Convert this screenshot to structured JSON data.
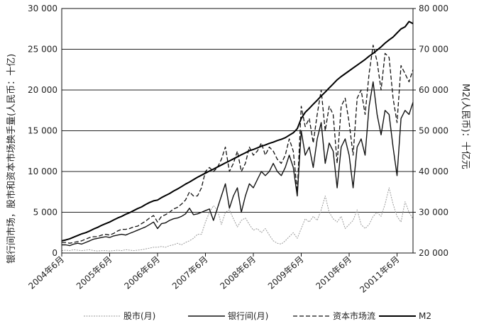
{
  "chart_data": {
    "type": "line",
    "y_left_label": "银行间市场，股市和资本市场换手量(人民币：十亿)",
    "y_right_label": "M2(人民币)：十亿元",
    "y_left_lim": [
      0,
      30000
    ],
    "y_right_lim": [
      20000,
      80000
    ],
    "y_left_ticks": [
      "0",
      "5 000",
      "10 000",
      "15 000",
      "20 000",
      "25 000",
      "30 000"
    ],
    "y_right_ticks": [
      "20 000",
      "30 000",
      "40 000",
      "50 000",
      "60 000",
      "70 000",
      "80 000"
    ],
    "x_ticks": [
      "2004年6月",
      "2005年6月",
      "2006年6月",
      "2007年6月",
      "2008年6月",
      "2009年6月",
      "2010年6月",
      "20011年6月"
    ],
    "x_tick_months": [
      0,
      12,
      24,
      36,
      48,
      60,
      72,
      84
    ],
    "x_months_total": 89,
    "grid": "horizontal",
    "legend_position": "bottom",
    "series": [
      {
        "name": "股市(月)",
        "axis": "left",
        "style": "dotted",
        "values": [
          300,
          350,
          300,
          400,
          350,
          300,
          350,
          400,
          300,
          250,
          300,
          300,
          250,
          300,
          350,
          300,
          400,
          350,
          300,
          350,
          400,
          500,
          600,
          700,
          700,
          800,
          700,
          900,
          1000,
          1200,
          1000,
          1300,
          1500,
          1800,
          2300,
          2300,
          3800,
          5000,
          5800,
          5300,
          3500,
          5000,
          5300,
          4200,
          3200,
          4000,
          4300,
          3500,
          2800,
          3000,
          2500,
          3000,
          2200,
          1500,
          1200,
          1100,
          1500,
          2000,
          2500,
          1800,
          3000,
          4200,
          3800,
          4500,
          4000,
          5300,
          7000,
          5000,
          4200,
          3800,
          4500,
          3000,
          3500,
          4000,
          5300,
          3500,
          3000,
          3500,
          4500,
          5000,
          4500,
          6000,
          8000,
          6000,
          4500,
          3800,
          6300,
          5000,
          4200
        ]
      },
      {
        "name": "银行间(月)",
        "axis": "left",
        "style": "solid",
        "values": [
          1000,
          1000,
          900,
          1100,
          1200,
          1100,
          1300,
          1500,
          1700,
          1800,
          1900,
          2000,
          1900,
          2100,
          2200,
          2300,
          2200,
          2400,
          2600,
          2800,
          3000,
          3200,
          3500,
          3800,
          3000,
          3600,
          3700,
          4000,
          4200,
          4300,
          4500,
          4800,
          5500,
          4700,
          4800,
          5000,
          5200,
          5400,
          4000,
          5500,
          7000,
          8500,
          5500,
          7000,
          8000,
          5000,
          7000,
          8500,
          8000,
          9000,
          10000,
          9500,
          10000,
          11000,
          10000,
          9500,
          10500,
          12000,
          10500,
          7000,
          15000,
          12000,
          13000,
          10500,
          14000,
          16000,
          11000,
          13500,
          12500,
          8000,
          13000,
          14000,
          12000,
          8000,
          13000,
          14000,
          12000,
          18000,
          21000,
          17000,
          14500,
          17500,
          17000,
          13000,
          9500,
          16500,
          17500,
          17000,
          18500
        ]
      },
      {
        "name": "资本市场流",
        "axis": "left",
        "style": "dashed",
        "values": [
          1300,
          1300,
          1200,
          1300,
          1400,
          1500,
          1700,
          1900,
          2000,
          2000,
          2200,
          2300,
          2200,
          2400,
          2700,
          2900,
          2900,
          3000,
          3200,
          3300,
          3600,
          3900,
          4300,
          4600,
          3800,
          4500,
          4700,
          5000,
          5400,
          5600,
          6000,
          6500,
          7500,
          7000,
          7000,
          8000,
          10000,
          10500,
          10000,
          10500,
          11500,
          13000,
          10000,
          11000,
          12500,
          10000,
          11000,
          13000,
          12000,
          12500,
          13500,
          12000,
          13000,
          12500,
          11500,
          11000,
          12000,
          14000,
          12500,
          7500,
          18000,
          15500,
          16500,
          13500,
          17000,
          20000,
          15000,
          18000,
          17000,
          11000,
          18000,
          19000,
          16000,
          12000,
          19000,
          20000,
          17000,
          22000,
          25500,
          23500,
          20000,
          24500,
          24000,
          19000,
          16000,
          23000,
          22000,
          21000,
          22500
        ]
      },
      {
        "name": "M2",
        "axis": "right",
        "style": "solid-bold",
        "values": [
          23000,
          23200,
          23500,
          23900,
          24300,
          24700,
          25000,
          25400,
          25900,
          26300,
          26800,
          27200,
          27600,
          28100,
          28600,
          29000,
          29500,
          29900,
          30400,
          30900,
          31300,
          31900,
          32400,
          32800,
          33000,
          33600,
          34100,
          34600,
          35200,
          35700,
          36300,
          36900,
          37400,
          38000,
          38600,
          39100,
          39600,
          40100,
          40600,
          41100,
          41600,
          42100,
          42600,
          43100,
          43600,
          44100,
          44600,
          45100,
          45400,
          45800,
          46200,
          46500,
          46900,
          47200,
          47600,
          47900,
          48300,
          48900,
          49500,
          50500,
          53000,
          54500,
          55500,
          56500,
          57500,
          58500,
          59500,
          60500,
          61500,
          62500,
          63300,
          64000,
          64700,
          65400,
          66100,
          66800,
          67500,
          68300,
          69000,
          69800,
          70600,
          71500,
          72300,
          73000,
          74000,
          75000,
          75500,
          76800,
          76300
        ]
      }
    ]
  }
}
